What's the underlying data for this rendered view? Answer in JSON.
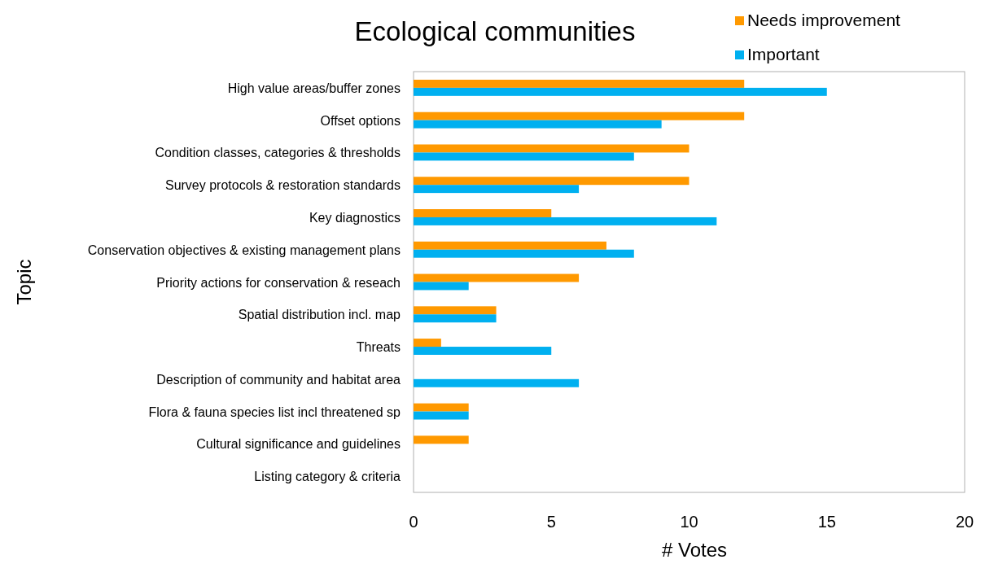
{
  "chart_data": {
    "type": "bar",
    "orientation": "horizontal",
    "title": "Ecological communities",
    "xlabel": "# Votes",
    "ylabel": "Topic",
    "categories": [
      "High value areas/buffer zones",
      "Offset options",
      "Condition classes, categories & thresholds",
      "Survey protocols & restoration standards",
      "Key diagnostics",
      "Conservation objectives & existing management plans",
      "Priority actions for conservation & reseach",
      "Spatial distribution incl. map",
      "Threats",
      "Description of community and habitat area",
      "Flora & fauna species list incl threatened sp",
      "Cultural significance and guidelines",
      "Listing category & criteria"
    ],
    "series": [
      {
        "name": "Needs improvement",
        "color": "#ff9900",
        "values": [
          12,
          12,
          10,
          10,
          5,
          7,
          6,
          3,
          1,
          0,
          2,
          2,
          0
        ]
      },
      {
        "name": "Important",
        "color": "#00b0f0",
        "values": [
          15,
          9,
          8,
          6,
          11,
          8,
          2,
          3,
          5,
          6,
          2,
          0,
          0
        ]
      }
    ],
    "xlim": [
      0,
      20
    ],
    "xticks": [
      0,
      5,
      10,
      15,
      20
    ],
    "grid": false,
    "legend": "top right"
  }
}
